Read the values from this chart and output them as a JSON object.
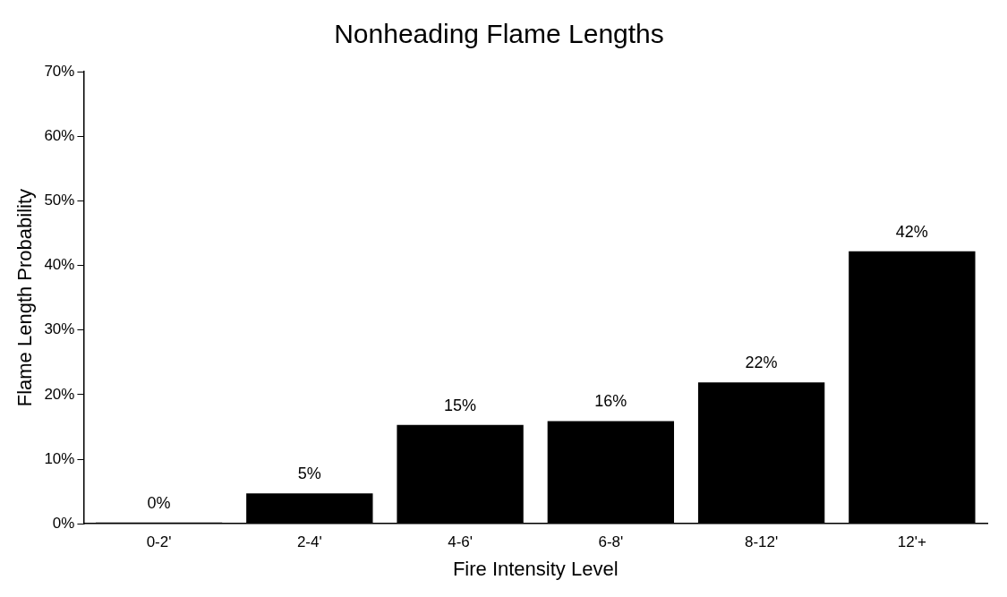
{
  "chart_data": {
    "type": "bar",
    "title": "Nonheading Flame Lengths",
    "xlabel": "Fire Intensity Level",
    "ylabel": "Flame Length Probability",
    "categories": [
      "0-2'",
      "2-4'",
      "4-6'",
      "6-8'",
      "8-12'",
      "12'+"
    ],
    "values": [
      0.2,
      4.7,
      15.3,
      15.9,
      21.9,
      42.2
    ],
    "value_labels": [
      "0%",
      "5%",
      "15%",
      "16%",
      "22%",
      "42%"
    ],
    "color": "#000000",
    "ylim": [
      0,
      70
    ],
    "yticks": [
      {
        "value": 0,
        "label": "0%"
      },
      {
        "value": 10,
        "label": "10%"
      },
      {
        "value": 20,
        "label": "20%"
      },
      {
        "value": 30,
        "label": "30%"
      },
      {
        "value": 40,
        "label": "40%"
      },
      {
        "value": 50,
        "label": "50%"
      },
      {
        "value": 60,
        "label": "60%"
      },
      {
        "value": 70,
        "label": "70%"
      }
    ],
    "grid": false,
    "legend": false
  }
}
